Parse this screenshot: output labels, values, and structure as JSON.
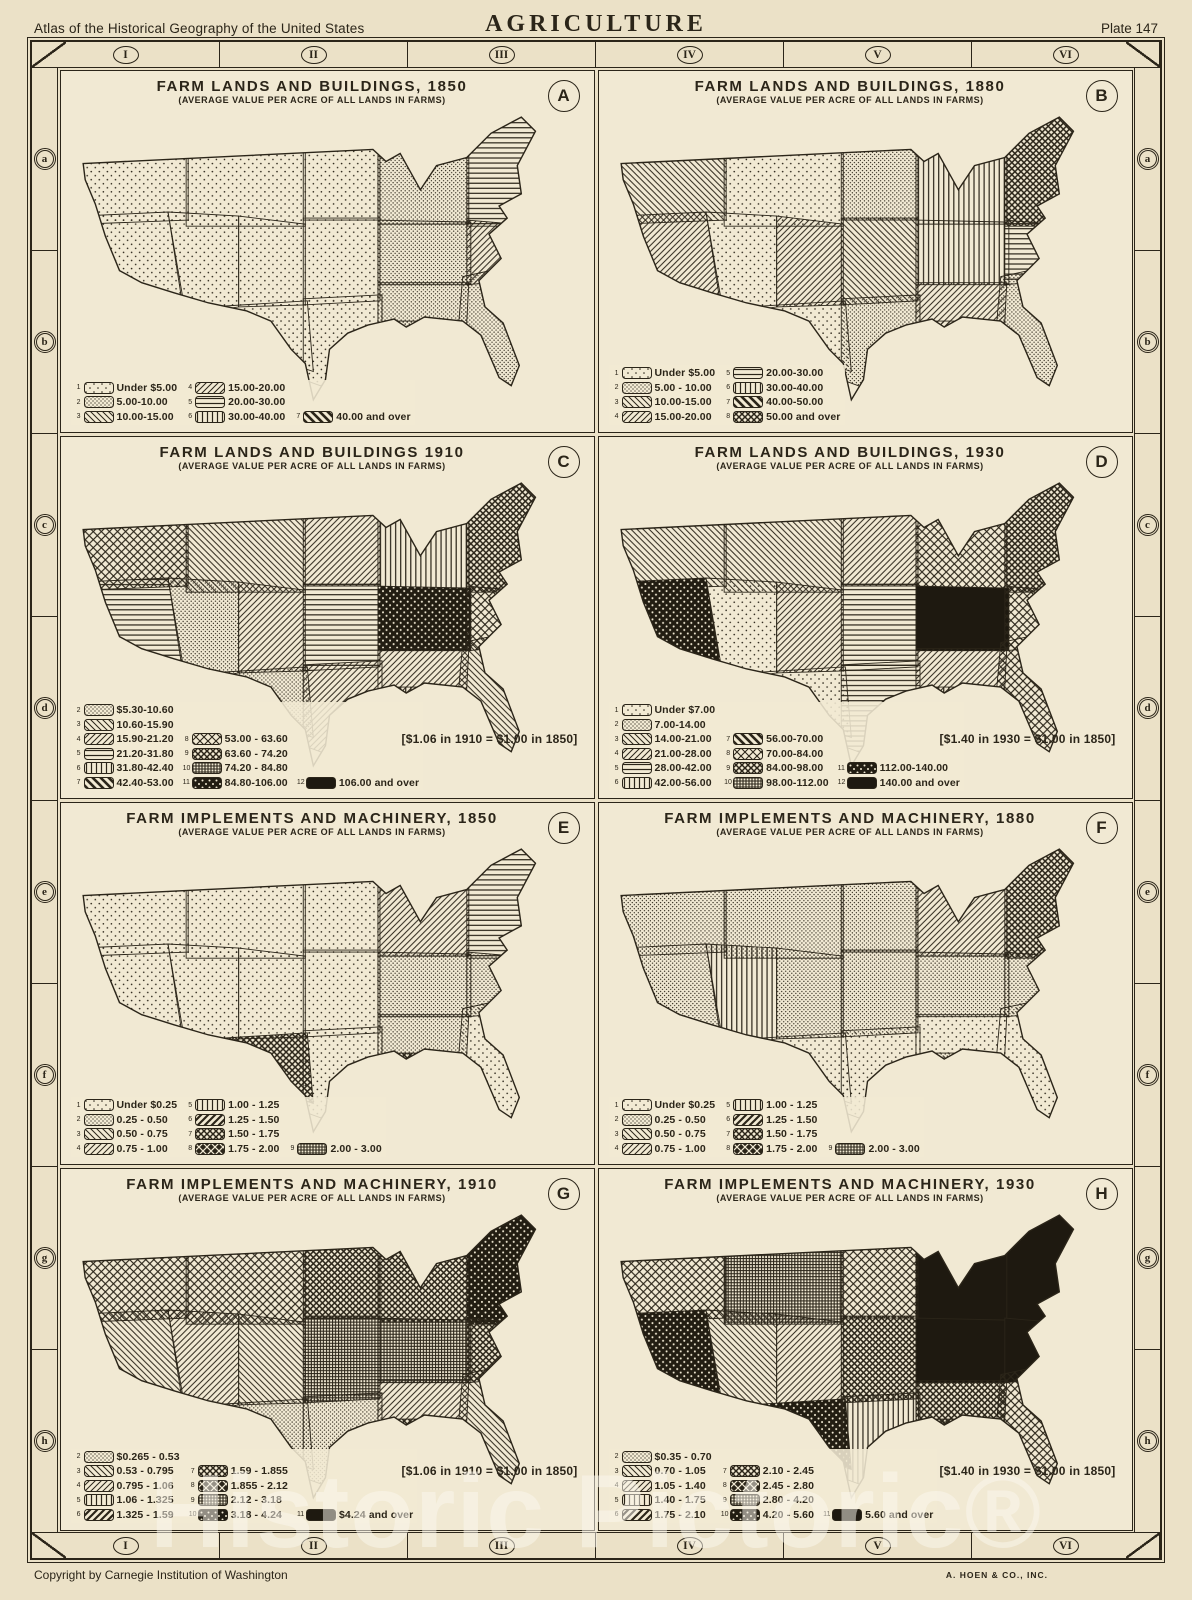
{
  "header": {
    "atlas": "Atlas of the Historical Geography of the United States",
    "title": "AGRICULTURE",
    "plate": "Plate 147"
  },
  "footer": {
    "copyright": "Copyright by Carnegie Institution of Washington",
    "printer": "A. HOEN & CO., INC."
  },
  "watermark": "Historic Pictoric®",
  "colors": {
    "ink": "#2b2519",
    "paper": "#f1e9d3"
  },
  "grid": {
    "columns": [
      "I",
      "II",
      "III",
      "IV",
      "V",
      "VI"
    ],
    "rows": [
      "a",
      "b",
      "c",
      "d",
      "e",
      "f",
      "g",
      "h"
    ]
  },
  "panels": [
    {
      "letter": "A",
      "title": "FARM LANDS AND BUILDINGS, 1850",
      "subtitle": "(AVERAGE VALUE PER ACRE OF ALL LANDS IN FARMS)",
      "legend": {
        "columns": [
          [
            {
              "num": "1",
              "pattern": "dots",
              "label": "Under $5.00"
            },
            {
              "num": "2",
              "pattern": "stipple",
              "label": "5.00-10.00"
            },
            {
              "num": "3",
              "pattern": "diagNW",
              "label": "10.00-15.00"
            }
          ],
          [
            {
              "num": "4",
              "pattern": "diagNE",
              "label": "15.00-20.00"
            },
            {
              "num": "5",
              "pattern": "horiz",
              "label": "20.00-30.00"
            },
            {
              "num": "6",
              "pattern": "vert",
              "label": "30.00-40.00"
            }
          ],
          [
            {
              "num": "7",
              "pattern": "heavyDiag",
              "label": "40.00 and over"
            }
          ]
        ],
        "note": ""
      },
      "map": {
        "regions": {
          "pnw": "dots",
          "mtnorth": "dots",
          "dakotas": "dots",
          "uppermw": "stipple",
          "northeast": "horiz",
          "california": "dots",
          "greatbasin": "dots",
          "rockies": "dots",
          "plains": "dots",
          "cornbelt": "stipple",
          "ohio": "diagNE",
          "southwest": "dots",
          "texas": "dots",
          "southcentral": "stipple",
          "southeast": "stipple",
          "louisiana": "stipple"
        }
      }
    },
    {
      "letter": "B",
      "title": "FARM LANDS AND BUILDINGS, 1880",
      "subtitle": "(AVERAGE VALUE PER ACRE OF ALL LANDS IN FARMS)",
      "legend": {
        "columns": [
          [
            {
              "num": "1",
              "pattern": "dots",
              "label": "Under $5.00"
            },
            {
              "num": "2",
              "pattern": "stipple",
              "label": "5.00 - 10.00"
            },
            {
              "num": "3",
              "pattern": "diagNW",
              "label": "10.00-15.00"
            },
            {
              "num": "4",
              "pattern": "diagNE",
              "label": "15.00-20.00"
            }
          ],
          [
            {
              "num": "5",
              "pattern": "horiz",
              "label": "20.00-30.00"
            },
            {
              "num": "6",
              "pattern": "vert",
              "label": "30.00-40.00"
            },
            {
              "num": "7",
              "pattern": "heavyDiag",
              "label": "40.00-50.00"
            },
            {
              "num": "8",
              "pattern": "darkCross",
              "label": "50.00 and over"
            }
          ]
        ],
        "note": ""
      },
      "map": {
        "regions": {
          "pnw": "diagNW",
          "mtnorth": "dots",
          "dakotas": "stipple",
          "uppermw": "vert",
          "northeast": "darkCross",
          "california": "diagNE",
          "greatbasin": "dots",
          "rockies": "diagNE",
          "plains": "diagNW",
          "cornbelt": "vert",
          "ohio": "horiz",
          "southwest": "dots",
          "texas": "stipple",
          "southcentral": "diagNE",
          "southeast": "stipple",
          "louisiana": "diagNE"
        }
      }
    },
    {
      "letter": "C",
      "title": "FARM LANDS AND BUILDINGS 1910",
      "subtitle": "(AVERAGE VALUE PER ACRE OF ALL LANDS IN FARMS)",
      "legend": {
        "columns": [
          [
            {
              "num": "2",
              "pattern": "stipple",
              "label": "$5.30-10.60"
            },
            {
              "num": "3",
              "pattern": "diagNW",
              "label": "10.60-15.90"
            },
            {
              "num": "4",
              "pattern": "diagNE",
              "label": "15.90-21.20"
            },
            {
              "num": "5",
              "pattern": "horiz",
              "label": "21.20-31.80"
            },
            {
              "num": "6",
              "pattern": "vert",
              "label": "31.80-42.40"
            },
            {
              "num": "7",
              "pattern": "heavyDiag",
              "label": "42.40-53.00"
            }
          ],
          [
            {
              "num": "8",
              "pattern": "cross",
              "label": "53.00 - 63.60"
            },
            {
              "num": "9",
              "pattern": "darkCross",
              "label": "63.60 - 74.20"
            },
            {
              "num": "10",
              "pattern": "gridPat",
              "label": "74.20 - 84.80"
            },
            {
              "num": "11",
              "pattern": "blackDots",
              "label": "84.80-106.00"
            }
          ],
          [
            {
              "num": "12",
              "pattern": "solid",
              "label": "106.00 and over"
            }
          ]
        ],
        "note": "[$1.06 in 1910 = $1.00 in 1850]"
      },
      "map": {
        "regions": {
          "pnw": "cross",
          "mtnorth": "diagNW",
          "dakotas": "diagNE",
          "uppermw": "vert",
          "northeast": "darkCross",
          "california": "horiz",
          "greatbasin": "stipple",
          "rockies": "diagNE",
          "plains": "horiz",
          "cornbelt": "blackDots",
          "ohio": "cross",
          "southwest": "stipple",
          "texas": "diagNE",
          "southcentral": "diagNE",
          "southeast": "diagNW",
          "louisiana": "vert"
        }
      }
    },
    {
      "letter": "D",
      "title": "FARM LANDS AND BUILDINGS, 1930",
      "subtitle": "(AVERAGE VALUE PER ACRE OF ALL LANDS IN FARMS)",
      "legend": {
        "columns": [
          [
            {
              "num": "1",
              "pattern": "dots",
              "label": "Under $7.00"
            },
            {
              "num": "2",
              "pattern": "stipple",
              "label": "7.00-14.00"
            },
            {
              "num": "3",
              "pattern": "diagNW",
              "label": "14.00-21.00"
            },
            {
              "num": "4",
              "pattern": "diagNE",
              "label": "21.00-28.00"
            },
            {
              "num": "5",
              "pattern": "horiz",
              "label": "28.00-42.00"
            },
            {
              "num": "6",
              "pattern": "vert",
              "label": "42.00-56.00"
            }
          ],
          [
            {
              "num": "7",
              "pattern": "heavyDiag",
              "label": "56.00-70.00"
            },
            {
              "num": "8",
              "pattern": "cross",
              "label": "70.00-84.00"
            },
            {
              "num": "9",
              "pattern": "darkCross",
              "label": "84.00-98.00"
            },
            {
              "num": "10",
              "pattern": "gridPat",
              "label": "98.00-112.00"
            }
          ],
          [
            {
              "num": "11",
              "pattern": "blackDots",
              "label": "112.00-140.00"
            },
            {
              "num": "12",
              "pattern": "solid",
              "label": "140.00 and over"
            }
          ]
        ],
        "note": "[$1.40 in 1930 = $1.00 in 1850]"
      },
      "map": {
        "regions": {
          "pnw": "diagNW",
          "mtnorth": "diagNW",
          "dakotas": "diagNE",
          "uppermw": "cross",
          "northeast": "darkCross",
          "california": "blackDots",
          "greatbasin": "dots",
          "rockies": "diagNE",
          "plains": "horiz",
          "cornbelt": "solid",
          "ohio": "cross",
          "southwest": "dots",
          "texas": "horiz",
          "southcentral": "diagNE",
          "southeast": "cross",
          "louisiana": "vert"
        }
      }
    },
    {
      "letter": "E",
      "title": "FARM IMPLEMENTS AND MACHINERY, 1850",
      "subtitle": "(AVERAGE VALUE PER ACRE OF ALL LANDS IN FARMS)",
      "legend": {
        "columns": [
          [
            {
              "num": "1",
              "pattern": "dots",
              "label": "Under $0.25"
            },
            {
              "num": "2",
              "pattern": "stipple",
              "label": "0.25 - 0.50"
            },
            {
              "num": "3",
              "pattern": "diagNW",
              "label": "0.50 - 0.75"
            },
            {
              "num": "4",
              "pattern": "diagNE",
              "label": "0.75 - 1.00"
            }
          ],
          [
            {
              "num": "5",
              "pattern": "vert",
              "label": "1.00 - 1.25"
            },
            {
              "num": "6",
              "pattern": "diagDark",
              "label": "1.25 - 1.50"
            },
            {
              "num": "7",
              "pattern": "darkCross",
              "label": "1.50 - 1.75"
            },
            {
              "num": "8",
              "pattern": "diamondDark",
              "label": "1.75 - 2.00"
            }
          ],
          [
            {
              "num": "9",
              "pattern": "gridPat",
              "label": "2.00 - 3.00"
            }
          ]
        ],
        "note": ""
      },
      "map": {
        "regions": {
          "pnw": "dots",
          "mtnorth": "dots",
          "dakotas": "dots",
          "uppermw": "diagNE",
          "northeast": "horiz",
          "california": "dots",
          "greatbasin": "dots",
          "rockies": "dots",
          "plains": "dots",
          "cornbelt": "stipple",
          "ohio": "stipple",
          "southwest": "darkCross",
          "texas": "dots",
          "southcentral": "stipple",
          "southeast": "dots",
          "louisiana": "darkCross"
        }
      }
    },
    {
      "letter": "F",
      "title": "FARM IMPLEMENTS AND MACHINERY, 1880",
      "subtitle": "(AVERAGE VALUE PER ACRE OF ALL LANDS IN FARMS)",
      "legend": {
        "columns": [
          [
            {
              "num": "1",
              "pattern": "dots",
              "label": "Under $0.25"
            },
            {
              "num": "2",
              "pattern": "stipple",
              "label": "0.25 - 0.50"
            },
            {
              "num": "3",
              "pattern": "diagNW",
              "label": "0.50 - 0.75"
            },
            {
              "num": "4",
              "pattern": "diagNE",
              "label": "0.75 - 1.00"
            }
          ],
          [
            {
              "num": "5",
              "pattern": "vert",
              "label": "1.00 - 1.25"
            },
            {
              "num": "6",
              "pattern": "diagDark",
              "label": "1.25 - 1.50"
            },
            {
              "num": "7",
              "pattern": "darkCross",
              "label": "1.50 - 1.75"
            },
            {
              "num": "8",
              "pattern": "diamondDark",
              "label": "1.75 - 2.00"
            }
          ],
          [
            {
              "num": "9",
              "pattern": "gridPat",
              "label": "2.00 - 3.00"
            }
          ]
        ],
        "note": ""
      },
      "map": {
        "regions": {
          "pnw": "stipple",
          "mtnorth": "stipple",
          "dakotas": "stipple",
          "uppermw": "diagNE",
          "northeast": "darkCross",
          "california": "stipple",
          "greatbasin": "vert",
          "rockies": "stipple",
          "plains": "stipple",
          "cornbelt": "stipple",
          "ohio": "stipple",
          "southwest": "dots",
          "texas": "dots",
          "southcentral": "dots",
          "southeast": "dots",
          "louisiana": "stipple"
        }
      }
    },
    {
      "letter": "G",
      "title": "FARM IMPLEMENTS AND MACHINERY, 1910",
      "subtitle": "(AVERAGE VALUE PER ACRE OF ALL LANDS IN FARMS)",
      "legend": {
        "columns": [
          [
            {
              "num": "2",
              "pattern": "stipple",
              "label": "$0.265 - 0.53"
            },
            {
              "num": "3",
              "pattern": "diagNW",
              "label": "0.53 - 0.795"
            },
            {
              "num": "4",
              "pattern": "diagNE",
              "label": "0.795 - 1.06"
            },
            {
              "num": "5",
              "pattern": "vert",
              "label": "1.06 - 1.325"
            },
            {
              "num": "6",
              "pattern": "diagDark",
              "label": "1.325 - 1.59"
            }
          ],
          [
            {
              "num": "7",
              "pattern": "darkCross",
              "label": "1.59 - 1.855"
            },
            {
              "num": "8",
              "pattern": "diamondDark",
              "label": "1.855 - 2.12"
            },
            {
              "num": "9",
              "pattern": "gridPat",
              "label": "2.12 - 3.18"
            },
            {
              "num": "10",
              "pattern": "blackDots",
              "label": "3.18 - 4.24"
            }
          ],
          [
            {
              "num": "11",
              "pattern": "solid",
              "label": "$4.24 and over"
            }
          ]
        ],
        "note": "[$1.06 in 1910 = $1.00 in 1850]"
      },
      "map": {
        "regions": {
          "pnw": "cross",
          "mtnorth": "cross",
          "dakotas": "darkCross",
          "uppermw": "darkCross",
          "northeast": "blackDots",
          "california": "diagNW",
          "greatbasin": "diagNE",
          "rockies": "diagNW",
          "plains": "gridPat",
          "cornbelt": "gridPat",
          "ohio": "darkCross",
          "southwest": "stipple",
          "texas": "stipple",
          "southcentral": "diagNE",
          "southeast": "diagNW",
          "louisiana": "darkCross"
        }
      }
    },
    {
      "letter": "H",
      "title": "FARM IMPLEMENTS AND MACHINERY, 1930",
      "subtitle": "(AVERAGE VALUE PER ACRE OF ALL LANDS IN FARMS)",
      "legend": {
        "columns": [
          [
            {
              "num": "2",
              "pattern": "stipple",
              "label": "$0.35 - 0.70"
            },
            {
              "num": "3",
              "pattern": "diagNW",
              "label": "0.70 - 1.05"
            },
            {
              "num": "4",
              "pattern": "diagNE",
              "label": "1.05 - 1.40"
            },
            {
              "num": "5",
              "pattern": "vert",
              "label": "1.40 - 1.75"
            },
            {
              "num": "6",
              "pattern": "diagDark",
              "label": "1.75 - 2.10"
            }
          ],
          [
            {
              "num": "7",
              "pattern": "darkCross",
              "label": "2.10 - 2.45"
            },
            {
              "num": "8",
              "pattern": "diamondDark",
              "label": "2.45 - 2.80"
            },
            {
              "num": "9",
              "pattern": "gridPat",
              "label": "2.80 - 4.20"
            },
            {
              "num": "10",
              "pattern": "blackDots",
              "label": "4.20 - 5.60"
            }
          ],
          [
            {
              "num": "11",
              "pattern": "solid",
              "label": "5.60 and over"
            }
          ]
        ],
        "note": "[$1.40 in 1930 = $1.00 in 1850]"
      },
      "map": {
        "regions": {
          "pnw": "cross",
          "mtnorth": "gridPat",
          "dakotas": "cross",
          "uppermw": "solid",
          "northeast": "solid",
          "california": "blackDots",
          "greatbasin": "diagNW",
          "rockies": "diagNE",
          "plains": "darkCross",
          "cornbelt": "solid",
          "ohio": "solid",
          "southwest": "blackDots",
          "texas": "vert",
          "southcentral": "darkCross",
          "southeast": "cross",
          "louisiana": "gridPat"
        }
      }
    }
  ]
}
